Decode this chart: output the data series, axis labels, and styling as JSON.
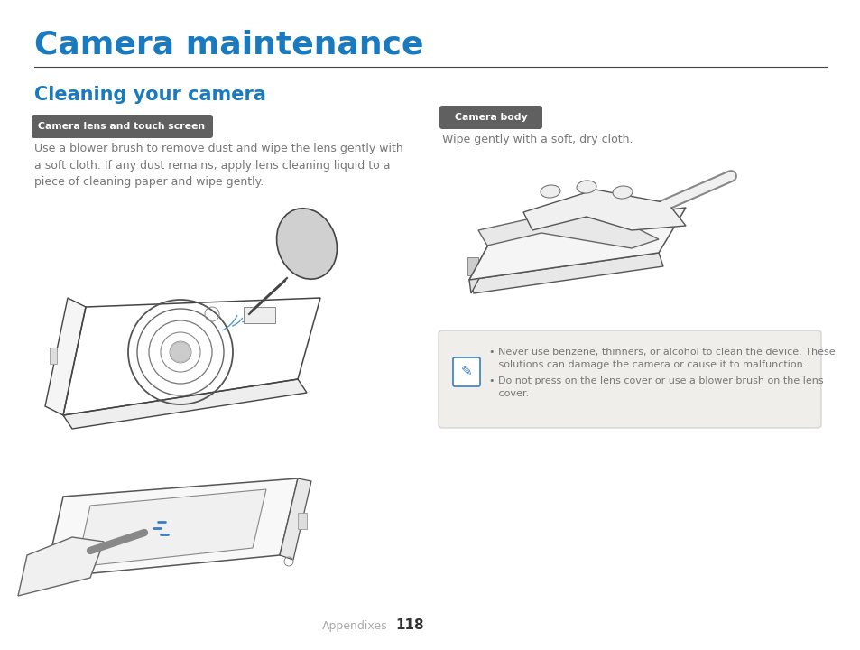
{
  "title": "Camera maintenance",
  "title_color": "#1a7abf",
  "title_fontsize": 26,
  "section_title": "Cleaning your camera",
  "section_title_color": "#1a7abf",
  "section_title_fontsize": 15,
  "bg_color": "#ffffff",
  "divider_color": "#444444",
  "tag1_text": "Camera lens and touch screen",
  "tag1_bg": "#606060",
  "tag1_fg": "#ffffff",
  "tag2_text": "Camera body",
  "tag2_bg": "#606060",
  "tag2_fg": "#ffffff",
  "body_text1": "Use a blower brush to remove dust and wipe the lens gently with\na soft cloth. If any dust remains, apply lens cleaning liquid to a\npiece of cleaning paper and wipe gently.",
  "body_text2": "Wipe gently with a soft, dry cloth.",
  "body_color": "#777777",
  "body_fontsize": 9.0,
  "note_bg": "#f0eeeb",
  "note_text1": "Never use benzene, thinners, or alcohol to clean the device. These\nsolutions can damage the camera or cause it to malfunction.",
  "note_text2": "Do not press on the lens cover or use a blower brush on the lens\ncover.",
  "note_color": "#777777",
  "note_fontsize": 8.0,
  "note_icon_color": "#3a7dbf",
  "footer_text_left": "Appendixes",
  "footer_text_num": "118",
  "footer_color": "#aaaaaa",
  "footer_num_color": "#333333",
  "footer_fontsize": 9
}
